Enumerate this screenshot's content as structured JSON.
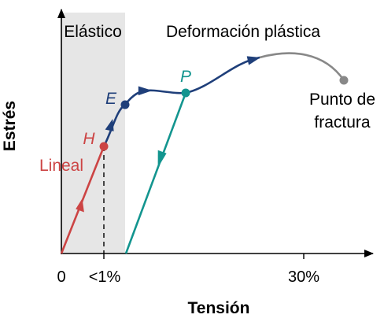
{
  "regions": {
    "elastic": "Elástico",
    "plastic": "Deformación plástica"
  },
  "axes": {
    "x_title": "Tensión",
    "y_title": "Estrés",
    "origin": "0",
    "tick_small": "<1%",
    "tick_large": "30%"
  },
  "points": {
    "H": "H",
    "E": "E",
    "P": "P"
  },
  "curves": {
    "linear": "Lineal",
    "fracture_line1": "Punto de",
    "fracture_line2": "fractura"
  },
  "colors": {
    "linear": "#cc4444",
    "plastic": "#1f3f7a",
    "unload": "#13958f",
    "fracture": "#888888",
    "elastic_band": "#e6e6e6"
  }
}
